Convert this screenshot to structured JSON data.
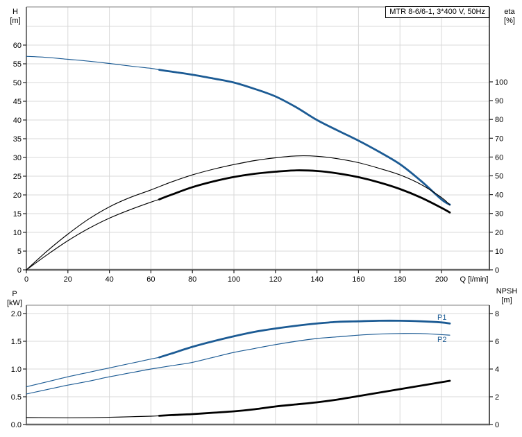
{
  "header": {
    "title": "MTR 8-6/6-1, 3*400 V, 50Hz"
  },
  "axes": {
    "h": {
      "line1": "H",
      "line2": "[m]"
    },
    "eta": {
      "line1": "eta",
      "line2": "[%]"
    },
    "p": {
      "line1": "P",
      "line2": "[kW]"
    },
    "npsh": {
      "line1": "NPSH",
      "line2": "[m]"
    }
  },
  "colors": {
    "curve_blue": "#1c5b94",
    "curve_black": "#000000",
    "grid": "#d8d8d8",
    "frame": "#666666"
  },
  "chart_data": [
    {
      "type": "line",
      "title": "MTR 8-6/6-1, 3*400 V, 50Hz",
      "xlabel": "Q [l/min]",
      "ylabel_left": "H [m]",
      "ylabel_right": "eta [%]",
      "xlim": [
        0,
        223
      ],
      "ylim_left": [
        0,
        70
      ],
      "ylim_right": [
        0,
        140
      ],
      "grid": true,
      "legend_position": "none",
      "x_ticks": [
        0,
        20,
        40,
        60,
        80,
        100,
        120,
        140,
        160,
        180,
        200
      ],
      "left_ticks": [
        0,
        5,
        10,
        15,
        20,
        25,
        30,
        35,
        40,
        45,
        50,
        55,
        60
      ],
      "right_ticks": [
        0,
        10,
        20,
        30,
        40,
        50,
        60,
        70,
        80,
        90,
        100
      ],
      "series": [
        {
          "name": "H",
          "axis": "left",
          "color": "#1c5b94",
          "thin_until": 64,
          "points": [
            [
              0,
              57
            ],
            [
              10,
              56.7
            ],
            [
              20,
              56.2
            ],
            [
              30,
              55.7
            ],
            [
              40,
              55.1
            ],
            [
              50,
              54.4
            ],
            [
              60,
              53.8
            ],
            [
              64,
              53.4
            ],
            [
              70,
              52.9
            ],
            [
              80,
              52.1
            ],
            [
              90,
              51.1
            ],
            [
              100,
              50
            ],
            [
              110,
              48.3
            ],
            [
              120,
              46.3
            ],
            [
              130,
              43.4
            ],
            [
              140,
              40
            ],
            [
              150,
              37.2
            ],
            [
              160,
              34.5
            ],
            [
              170,
              31.5
            ],
            [
              180,
              28.2
            ],
            [
              190,
              23.8
            ],
            [
              200,
              18.8
            ],
            [
              204,
              17.4
            ]
          ]
        },
        {
          "name": "eta-thin",
          "axis": "right",
          "color": "#000000",
          "thin_until": null,
          "points": [
            [
              0,
              0
            ],
            [
              10,
              10
            ],
            [
              20,
              19
            ],
            [
              30,
              27
            ],
            [
              40,
              33.5
            ],
            [
              50,
              38.5
            ],
            [
              60,
              42.5
            ],
            [
              70,
              46.8
            ],
            [
              80,
              50.5
            ],
            [
              90,
              53.5
            ],
            [
              100,
              56
            ],
            [
              110,
              58.1
            ],
            [
              120,
              59.6
            ],
            [
              130,
              60.6
            ],
            [
              140,
              60.4
            ],
            [
              150,
              59.1
            ],
            [
              160,
              57
            ],
            [
              170,
              54
            ],
            [
              180,
              50.5
            ],
            [
              190,
              45.5
            ],
            [
              200,
              38.5
            ],
            [
              204,
              34.5
            ]
          ]
        },
        {
          "name": "eta-thick",
          "axis": "right",
          "color": "#000000",
          "thin_until": 64,
          "points": [
            [
              0,
              0
            ],
            [
              10,
              8
            ],
            [
              20,
              15.5
            ],
            [
              30,
              22
            ],
            [
              40,
              27.5
            ],
            [
              50,
              32
            ],
            [
              60,
              36
            ],
            [
              64,
              37.5
            ],
            [
              70,
              40
            ],
            [
              80,
              44
            ],
            [
              90,
              47
            ],
            [
              100,
              49.4
            ],
            [
              110,
              51.1
            ],
            [
              120,
              52.2
            ],
            [
              130,
              52.9
            ],
            [
              140,
              52.6
            ],
            [
              150,
              51.3
            ],
            [
              160,
              49.3
            ],
            [
              170,
              46.5
            ],
            [
              180,
              43
            ],
            [
              190,
              38.5
            ],
            [
              200,
              33
            ],
            [
              204,
              30.5
            ]
          ]
        }
      ]
    },
    {
      "type": "line",
      "xlabel": "Q [l/min]",
      "ylabel_left": "P [kW]",
      "ylabel_right": "NPSH [m]",
      "xlim": [
        0,
        223
      ],
      "ylim_left": [
        0,
        2.15
      ],
      "ylim_right": [
        0,
        8.6
      ],
      "grid": true,
      "x_ticks": [
        0,
        20,
        40,
        60,
        80,
        100,
        120,
        140,
        160,
        180,
        200
      ],
      "left_tick_values": [
        0,
        0.5,
        1,
        1.5,
        2
      ],
      "left_tick_labels": [
        "0.0",
        "0.5",
        "1.0",
        "1.5",
        "2.0"
      ],
      "right_ticks": [
        0,
        2,
        4,
        6,
        8
      ],
      "series": [
        {
          "name": "P1",
          "label": "P1",
          "axis": "left",
          "color": "#1c5b94",
          "thin_until": 64,
          "points": [
            [
              0,
              0.68
            ],
            [
              10,
              0.77
            ],
            [
              20,
              0.86
            ],
            [
              30,
              0.94
            ],
            [
              40,
              1.02
            ],
            [
              50,
              1.1
            ],
            [
              60,
              1.18
            ],
            [
              64,
              1.21
            ],
            [
              70,
              1.28
            ],
            [
              80,
              1.4
            ],
            [
              90,
              1.5
            ],
            [
              100,
              1.59
            ],
            [
              110,
              1.67
            ],
            [
              120,
              1.73
            ],
            [
              130,
              1.78
            ],
            [
              140,
              1.82
            ],
            [
              150,
              1.85
            ],
            [
              160,
              1.86
            ],
            [
              170,
              1.87
            ],
            [
              180,
              1.87
            ],
            [
              190,
              1.86
            ],
            [
              200,
              1.84
            ],
            [
              204,
              1.82
            ]
          ]
        },
        {
          "name": "P2",
          "label": "P2",
          "axis": "left",
          "color": "#1c5b94",
          "thin_until": null,
          "points": [
            [
              0,
              0.55
            ],
            [
              10,
              0.63
            ],
            [
              20,
              0.71
            ],
            [
              30,
              0.78
            ],
            [
              40,
              0.86
            ],
            [
              50,
              0.93
            ],
            [
              60,
              1
            ],
            [
              70,
              1.06
            ],
            [
              80,
              1.12
            ],
            [
              90,
              1.21
            ],
            [
              100,
              1.3
            ],
            [
              110,
              1.37
            ],
            [
              120,
              1.44
            ],
            [
              130,
              1.5
            ],
            [
              140,
              1.55
            ],
            [
              150,
              1.58
            ],
            [
              160,
              1.61
            ],
            [
              170,
              1.63
            ],
            [
              180,
              1.64
            ],
            [
              190,
              1.64
            ],
            [
              200,
              1.62
            ],
            [
              204,
              1.61
            ]
          ]
        },
        {
          "name": "NPSH",
          "axis": "right",
          "color": "#000000",
          "thin_until": 64,
          "points": [
            [
              0,
              0.5
            ],
            [
              10,
              0.49
            ],
            [
              20,
              0.48
            ],
            [
              30,
              0.49
            ],
            [
              40,
              0.52
            ],
            [
              50,
              0.56
            ],
            [
              60,
              0.6
            ],
            [
              64,
              0.63
            ],
            [
              70,
              0.68
            ],
            [
              80,
              0.75
            ],
            [
              90,
              0.85
            ],
            [
              100,
              0.95
            ],
            [
              110,
              1.1
            ],
            [
              120,
              1.3
            ],
            [
              130,
              1.45
            ],
            [
              140,
              1.6
            ],
            [
              150,
              1.8
            ],
            [
              160,
              2.05
            ],
            [
              170,
              2.3
            ],
            [
              180,
              2.55
            ],
            [
              190,
              2.8
            ],
            [
              200,
              3.05
            ],
            [
              204,
              3.15
            ]
          ]
        }
      ]
    }
  ]
}
